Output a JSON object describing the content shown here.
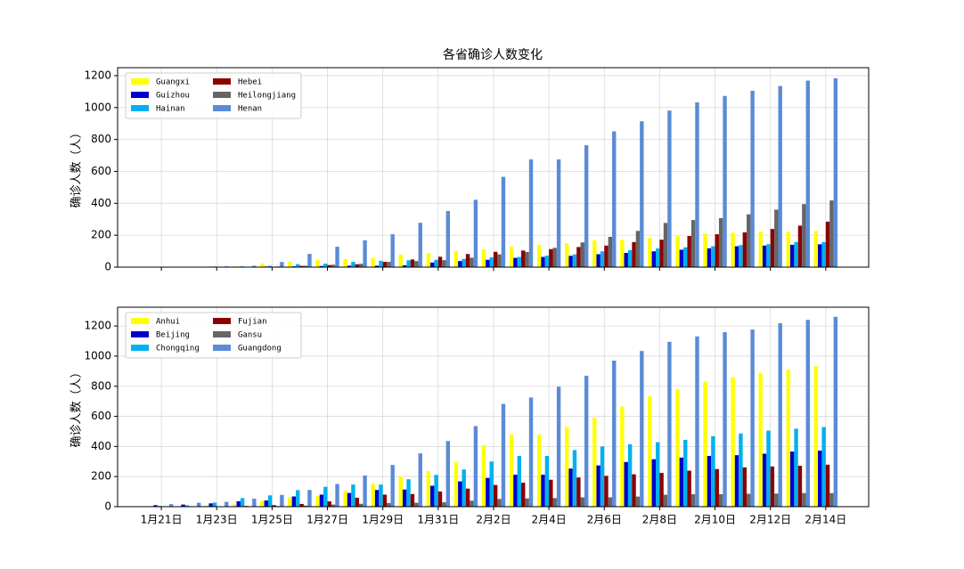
{
  "chart_data": [
    {
      "type": "bar",
      "title": "各省确诊人数变化",
      "ylabel": "确诊人数（人）",
      "ylim": [
        0,
        1250
      ],
      "yticks": [
        0,
        200,
        400,
        600,
        800,
        1000,
        1200
      ],
      "grid": true,
      "legend": "upper left",
      "series": [
        {
          "name": "Guangxi",
          "color": "#ffff00",
          "values": [
            0,
            0,
            2,
            5,
            23,
            36,
            46,
            51,
            58,
            78,
            87,
            100,
            111,
            127,
            139,
            150,
            168,
            172,
            183,
            195,
            210,
            215,
            222,
            222,
            226
          ]
        },
        {
          "name": "Guizhou",
          "color": "#0000cd",
          "values": [
            0,
            1,
            3,
            3,
            4,
            5,
            7,
            9,
            9,
            12,
            29,
            38,
            46,
            58,
            64,
            71,
            81,
            89,
            99,
            109,
            118,
            131,
            135,
            140,
            143
          ]
        },
        {
          "name": "Hainan",
          "color": "#00b0f0",
          "values": [
            0,
            0,
            4,
            5,
            8,
            19,
            22,
            33,
            40,
            43,
            46,
            52,
            62,
            64,
            72,
            80,
            99,
            106,
            117,
            124,
            131,
            138,
            144,
            157,
            157
          ]
        },
        {
          "name": "Hebei",
          "color": "#8b0000",
          "values": [
            0,
            0,
            1,
            1,
            2,
            8,
            13,
            18,
            33,
            48,
            65,
            82,
            96,
            104,
            113,
            126,
            135,
            157,
            172,
            195,
            206,
            218,
            239,
            260,
            285
          ]
        },
        {
          "name": "Heilongjiang",
          "color": "#666666",
          "values": [
            0,
            0,
            0,
            1,
            4,
            9,
            15,
            21,
            33,
            38,
            44,
            59,
            80,
            95,
            121,
            155,
            190,
            227,
            277,
            295,
            307,
            331,
            360,
            395,
            418
          ]
        },
        {
          "name": "Henan",
          "color": "#5b8bd6",
          "values": [
            0,
            1,
            5,
            9,
            32,
            83,
            128,
            168,
            206,
            278,
            352,
            422,
            566,
            675,
            675,
            764,
            851,
            914,
            981,
            1033,
            1073,
            1105,
            1135,
            1169,
            1184
          ]
        }
      ]
    },
    {
      "type": "bar",
      "ylabel": "确诊人数（人）",
      "categories": [
        "1月21日",
        null,
        "1月23日",
        null,
        "1月25日",
        null,
        "1月27日",
        null,
        "1月29日",
        null,
        "1月31日",
        null,
        "2月2日",
        null,
        "2月4日",
        null,
        "2月6日",
        null,
        "2月8日",
        null,
        "2月10日",
        null,
        "2月12日",
        null,
        "2月14日"
      ],
      "ylim": [
        0,
        1325
      ],
      "yticks": [
        0,
        200,
        400,
        600,
        800,
        1000,
        1200
      ],
      "grid": true,
      "legend": "upper left",
      "series": [
        {
          "name": "Anhui",
          "color": "#ffff00",
          "values": [
            0,
            1,
            9,
            15,
            39,
            60,
            70,
            106,
            152,
            200,
            237,
            297,
            408,
            480,
            480,
            530,
            591,
            665,
            733,
            779,
            830,
            860,
            889,
            910,
            934
          ]
        },
        {
          "name": "Beijing",
          "color": "#0000cd",
          "values": [
            10,
            14,
            22,
            36,
            41,
            68,
            80,
            91,
            111,
            114,
            139,
            168,
            191,
            212,
            212,
            253,
            274,
            297,
            315,
            326,
            337,
            342,
            352,
            366,
            372
          ]
        },
        {
          "name": "Chongqing",
          "color": "#00b0f0",
          "values": [
            5,
            9,
            27,
            57,
            75,
            110,
            132,
            147,
            147,
            182,
            211,
            247,
            300,
            337,
            337,
            376,
            400,
            415,
            428,
            444,
            468,
            486,
            505,
            518,
            529
          ]
        },
        {
          "name": "Fujian",
          "color": "#8b0000",
          "values": [
            0,
            0,
            1,
            5,
            10,
            18,
            35,
            59,
            80,
            84,
            101,
            120,
            144,
            159,
            179,
            194,
            205,
            215,
            224,
            239,
            250,
            261,
            267,
            272,
            279
          ]
        },
        {
          "name": "Gansu",
          "color": "#666666",
          "values": [
            0,
            0,
            2,
            2,
            4,
            7,
            14,
            19,
            24,
            26,
            29,
            40,
            51,
            55,
            57,
            62,
            62,
            67,
            79,
            83,
            83,
            86,
            87,
            90,
            90
          ]
        },
        {
          "name": "Guangdong",
          "color": "#5b8bd6",
          "values": [
            17,
            26,
            32,
            53,
            78,
            111,
            151,
            207,
            277,
            354,
            436,
            535,
            683,
            725,
            797,
            870,
            970,
            1034,
            1095,
            1131,
            1159,
            1177,
            1219,
            1241,
            1261
          ]
        }
      ]
    }
  ]
}
